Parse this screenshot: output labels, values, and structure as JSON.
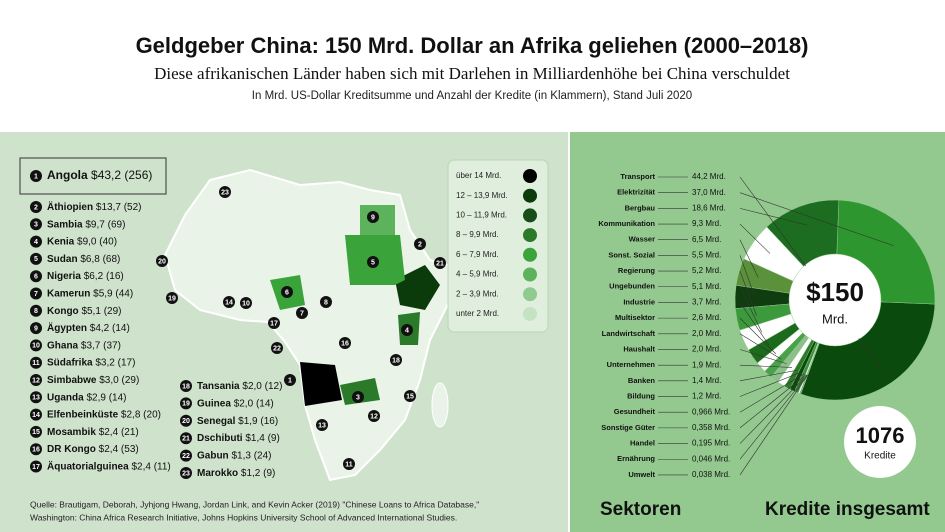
{
  "header": {
    "title": "Geldgeber China: 150 Mrd. Dollar an Afrika geliehen (2000–2018)",
    "subtitle": "Diese afrikanischen Länder haben sich mit Darlehen in Milliardenhöhe bei China verschuldet",
    "note": "In Mrd. US-Dollar Kreditsumme und Anzahl der Kredite (in Klammern), Stand Juli 2020"
  },
  "ranking": [
    {
      "rank": 1,
      "name": "Angola",
      "amount": "$43,2",
      "loans": "(256)"
    },
    {
      "rank": 2,
      "name": "Äthiopien",
      "amount": "$13,7",
      "loans": "(52)"
    },
    {
      "rank": 3,
      "name": "Sambia",
      "amount": "$9,7",
      "loans": "(69)"
    },
    {
      "rank": 4,
      "name": "Kenia",
      "amount": "$9,0",
      "loans": "(40)"
    },
    {
      "rank": 5,
      "name": "Sudan",
      "amount": "$6,8",
      "loans": "(68)"
    },
    {
      "rank": 6,
      "name": "Nigeria",
      "amount": "$6,2",
      "loans": "(16)"
    },
    {
      "rank": 7,
      "name": "Kamerun",
      "amount": "$5,9",
      "loans": "(44)"
    },
    {
      "rank": 8,
      "name": "Kongo",
      "amount": "$5,1",
      "loans": "(29)"
    },
    {
      "rank": 9,
      "name": "Ägypten",
      "amount": "$4,2",
      "loans": "(14)"
    },
    {
      "rank": 10,
      "name": "Ghana",
      "amount": "$3,7",
      "loans": "(37)"
    },
    {
      "rank": 11,
      "name": "Südafrika",
      "amount": "$3,2",
      "loans": "(17)"
    },
    {
      "rank": 12,
      "name": "Simbabwe",
      "amount": "$3,0",
      "loans": "(29)"
    },
    {
      "rank": 13,
      "name": "Uganda",
      "amount": "$2,9",
      "loans": "(14)"
    },
    {
      "rank": 14,
      "name": "Elfenbeinküste",
      "amount": "$2,8",
      "loans": "(20)"
    },
    {
      "rank": 15,
      "name": "Mosambik",
      "amount": "$2,4",
      "loans": "(21)"
    },
    {
      "rank": 16,
      "name": "DR Kongo",
      "amount": "$2,4",
      "loans": "(53)"
    },
    {
      "rank": 17,
      "name": "Äquatorialguinea",
      "amount": "$2,4",
      "loans": "(11)"
    },
    {
      "rank": 18,
      "name": "Tansania",
      "amount": "$2,0",
      "loans": "(12)"
    },
    {
      "rank": 19,
      "name": "Guinea",
      "amount": "$2,0",
      "loans": "(14)"
    },
    {
      "rank": 20,
      "name": "Senegal",
      "amount": "$1,9",
      "loans": "(16)"
    },
    {
      "rank": 21,
      "name": "Dschibuti",
      "amount": "$1,4",
      "loans": "(9)"
    },
    {
      "rank": 22,
      "name": "Gabun",
      "amount": "$1,3",
      "loans": "(24)"
    },
    {
      "rank": 23,
      "name": "Marokko",
      "amount": "$1,2",
      "loans": "(9)"
    }
  ],
  "legend": [
    {
      "label": "über 14 Mrd.",
      "color": "#000000"
    },
    {
      "label": "12 – 13,9 Mrd.",
      "color": "#0b3a0b"
    },
    {
      "label": "10 – 11,9 Mrd.",
      "color": "#174e17"
    },
    {
      "label": "8 – 9,9 Mrd.",
      "color": "#2a7a2a"
    },
    {
      "label": "6 – 7,9 Mrd.",
      "color": "#3aa43a"
    },
    {
      "label": "4 – 5,9 Mrd.",
      "color": "#5cb35c"
    },
    {
      "label": "2 – 3,9 Mrd.",
      "color": "#8fcb8f"
    },
    {
      "label": "unter 2 Mrd.",
      "color": "#c4e3c2"
    }
  ],
  "source": [
    "Quelle: Brautigam, Deborah, Jyhjong Hwang, Jordan Link, and Kevin Acker (2019) \"Chinese Loans to Africa Database,\"",
    "Washington: China Africa Research Initiative, Johns Hopkins University School of Advanced International Studies."
  ],
  "totals": {
    "amount": "$150",
    "unit": "Mrd.",
    "loans": "1076",
    "loans_unit": "Kredite",
    "heading": "Kredite insgesamt"
  },
  "chart_data": {
    "type": "pie",
    "title": "Sektoren",
    "categories": [
      "Transport",
      "Elektrizität",
      "Bergbau",
      "Kommunikation",
      "Wasser",
      "Sonst. Sozial",
      "Regierung",
      "Ungebunden",
      "Industrie",
      "Multisektor",
      "Landwirtschaft",
      "Haushalt",
      "Unternehmen",
      "Banken",
      "Bildung",
      "Gesundheit",
      "Sonstige Güter",
      "Handel",
      "Ernährung",
      "Umwelt"
    ],
    "values": [
      44.2,
      37.0,
      18.6,
      9.3,
      6.5,
      5.5,
      5.2,
      5.1,
      3.7,
      2.6,
      2.0,
      2.0,
      1.9,
      1.4,
      1.2,
      0.966,
      0.358,
      0.195,
      0.046,
      0.038
    ],
    "value_labels": [
      "44,2 Mrd.",
      "37,0 Mrd.",
      "18,6 Mrd.",
      "9,3 Mrd.",
      "6,5 Mrd.",
      "5,5 Mrd.",
      "5,2 Mrd.",
      "5,1 Mrd.",
      "3,7 Mrd.",
      "2,6 Mrd.",
      "2,0 Mrd.",
      "2,0 Mrd.",
      "1,9 Mrd.",
      "1,4 Mrd.",
      "1,2 Mrd.",
      "0,966 Mrd.",
      "0,358 Mrd.",
      "0,195 Mrd.",
      "0,046 Mrd.",
      "0,038 Mrd."
    ],
    "colors": [
      "#0b4a0d",
      "#2e962f",
      "#1d6d21",
      "#ffffff",
      "#5a913a",
      "#0f3d10",
      "#3c9a3c",
      "#ffffff",
      "#1c6b1c",
      "#ffffff",
      "#4aa14a",
      "#8cc08a",
      "#ffffff",
      "#2a7a2a",
      "#0c4a0c",
      "#3b8f3b",
      "#ffffff",
      "#1d6d21",
      "#5a913a",
      "#0f3d10"
    ]
  }
}
